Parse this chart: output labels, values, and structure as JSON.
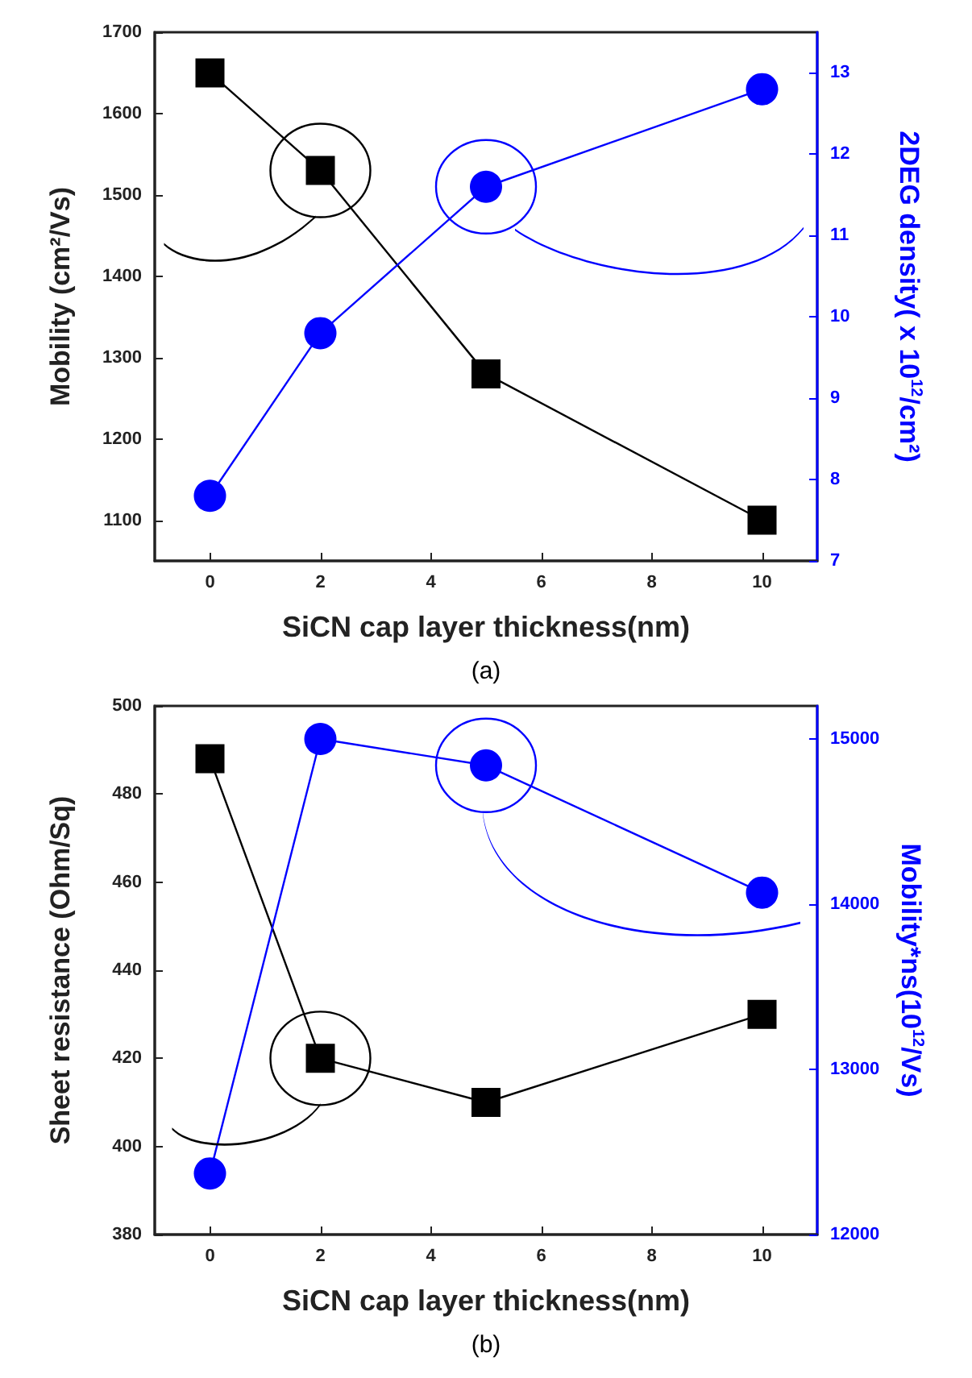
{
  "chart_data": [
    {
      "type": "line",
      "xlabel": "SiCN cap layer thickness(nm)",
      "ylabel": "Mobility (cm²/Vs)",
      "y2label": "2DEG density( x 10$^{12}$/cm²)",
      "annotations": [
        "(a)"
      ],
      "x": [
        0,
        2,
        5,
        10
      ],
      "xlim": [
        -1,
        11
      ],
      "xticks": [
        0,
        2,
        4,
        6,
        8,
        10
      ],
      "ylim": [
        1050,
        1700
      ],
      "yticks": [
        1100,
        1200,
        1300,
        1400,
        1500,
        1600,
        1700
      ],
      "y2lim": [
        7,
        13.5
      ],
      "y2ticks": [
        7,
        8,
        9,
        10,
        11,
        12,
        13
      ],
      "grid": false,
      "line_style": "solid",
      "series": [
        {
          "color": "#000000",
          "marker": "square",
          "values": [
            1650,
            1530,
            1280,
            1100
          ]
        },
        {
          "color": "#0000ff",
          "marker": "circle",
          "axis": "y2",
          "values": [
            7.8,
            9.8,
            11.6,
            12.8
          ]
        }
      ]
    },
    {
      "type": "line",
      "xlabel": "SiCN cap layer thickness(nm)",
      "ylabel": "Sheet resistance (Ohm/Sq)",
      "y2label": "Mobility*ns(10$^{12}$/Vs)",
      "annotations": [
        "(b)"
      ],
      "x": [
        0,
        2,
        5,
        10
      ],
      "xlim": [
        -1,
        11
      ],
      "xticks": [
        0,
        2,
        4,
        6,
        8,
        10
      ],
      "ylim": [
        380,
        500
      ],
      "yticks": [
        380,
        400,
        420,
        440,
        460,
        480,
        500
      ],
      "y2lim": [
        12000,
        15200
      ],
      "y2ticks": [
        12000,
        13000,
        14000,
        15000
      ],
      "grid": false,
      "line_style": "solid",
      "series": [
        {
          "color": "#000000",
          "marker": "square",
          "values": [
            488,
            420,
            410,
            430
          ]
        },
        {
          "color": "#0000ff",
          "marker": "circle",
          "axis": "y2",
          "values": [
            12370,
            15000,
            14840,
            14070
          ]
        }
      ]
    }
  ]
}
